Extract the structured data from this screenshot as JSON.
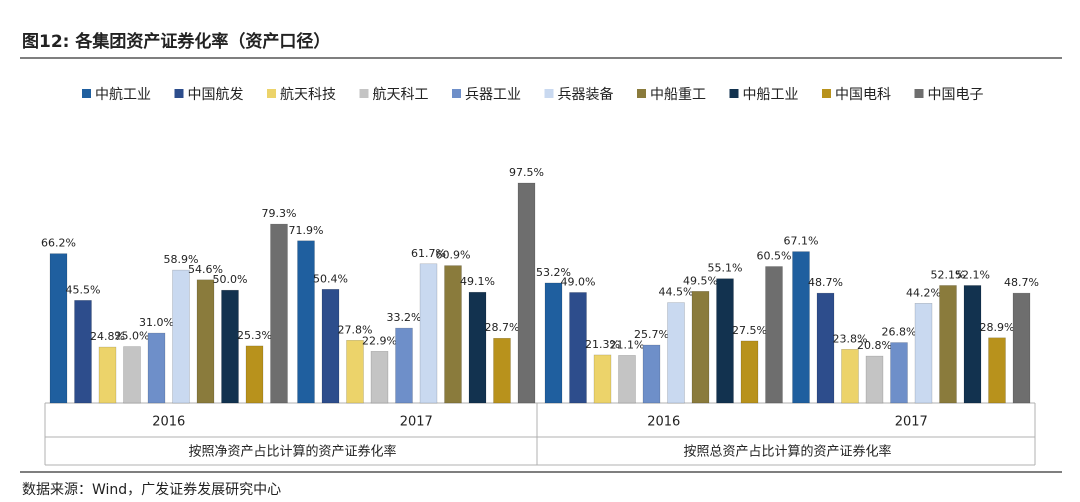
{
  "chart_data": {
    "type": "bar",
    "title": "图12: 各集团资产证券化率（资产口径）",
    "source": "数据来源：Wind，广发证券发展研究中心",
    "groups": [
      {
        "name": "按照净资产占比计算的资产证券化率",
        "categories": [
          "2016",
          "2017"
        ]
      },
      {
        "name": "按照总资产占比计算的资产证券化率",
        "categories": [
          "2016",
          "2017"
        ]
      }
    ],
    "series": [
      {
        "name": "中航工业",
        "color": "#1f5f9f",
        "values": [
          66.2,
          71.9,
          53.2,
          67.1
        ],
        "value_labels": [
          "66.2%",
          "71.9%",
          "53.2%",
          "67.1%"
        ]
      },
      {
        "name": "中国航发",
        "color": "#2d4d8c",
        "values": [
          45.5,
          50.4,
          49.0,
          48.7
        ],
        "value_labels": [
          "45.5%",
          "50.4%",
          "49.0%",
          "48.7%"
        ]
      },
      {
        "name": "航天科技",
        "color": "#ecd36a",
        "values": [
          24.8,
          27.8,
          21.3,
          23.8
        ],
        "value_labels": [
          "24.8%",
          "27.8%",
          "21.3%",
          "23.8%"
        ]
      },
      {
        "name": "航天科工",
        "color": "#c4c4c4",
        "values": [
          25.0,
          22.9,
          21.1,
          20.8
        ],
        "value_labels": [
          "25.0%",
          "22.9%",
          "21.1%",
          "20.8%"
        ]
      },
      {
        "name": "兵器工业",
        "color": "#6e8fc9",
        "values": [
          31.0,
          33.2,
          25.7,
          26.8
        ],
        "value_labels": [
          "31.0%",
          "33.2%",
          "25.7%",
          "26.8%"
        ]
      },
      {
        "name": "兵器装备",
        "color": "#c9d9f0",
        "values": [
          58.9,
          61.7,
          44.5,
          44.2
        ],
        "value_labels": [
          "58.9%",
          "61.7%",
          "44.5%",
          "44.2%"
        ]
      },
      {
        "name": "中船重工",
        "color": "#8a7b3c",
        "values": [
          54.6,
          60.9,
          49.5,
          52.1
        ],
        "value_labels": [
          "54.6%",
          "60.9%",
          "49.5%",
          "52.1%"
        ]
      },
      {
        "name": "中船工业",
        "color": "#12324f",
        "values": [
          50.0,
          49.1,
          55.1,
          52.1
        ],
        "value_labels": [
          "50.0%",
          "49.1%",
          "55.1%",
          "52.1%"
        ]
      },
      {
        "name": "中国电科",
        "color": "#b8921c",
        "values": [
          25.3,
          28.7,
          27.5,
          28.9
        ],
        "value_labels": [
          "25.3%",
          "28.7%",
          "27.5%",
          "28.9%"
        ]
      },
      {
        "name": "中国电子",
        "color": "#6e6e6e",
        "values": [
          79.3,
          97.5,
          60.5,
          48.7
        ],
        "value_labels": [
          "79.3%",
          "97.5%",
          "60.5%",
          "48.7%"
        ]
      }
    ]
  }
}
